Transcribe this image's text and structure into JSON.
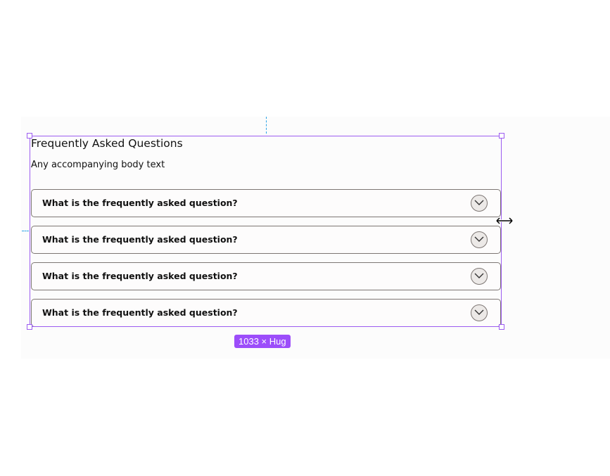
{
  "faq": {
    "title": "Frequently Asked Questions",
    "body": "Any accompanying body text",
    "items": [
      {
        "question": "What is the frequently asked question?",
        "icon": "chevron-down-icon"
      },
      {
        "question": "What is the frequently asked question?",
        "icon": "chevron-down-icon"
      },
      {
        "question": "What is the frequently asked question?",
        "icon": "chevron-down-icon"
      },
      {
        "question": "What is the frequently asked question?",
        "icon": "chevron-down-icon"
      }
    ]
  },
  "selection": {
    "size_label": "1033 × Hug",
    "color": "#9c5cf0"
  },
  "cursor": "resize-horizontal-icon"
}
